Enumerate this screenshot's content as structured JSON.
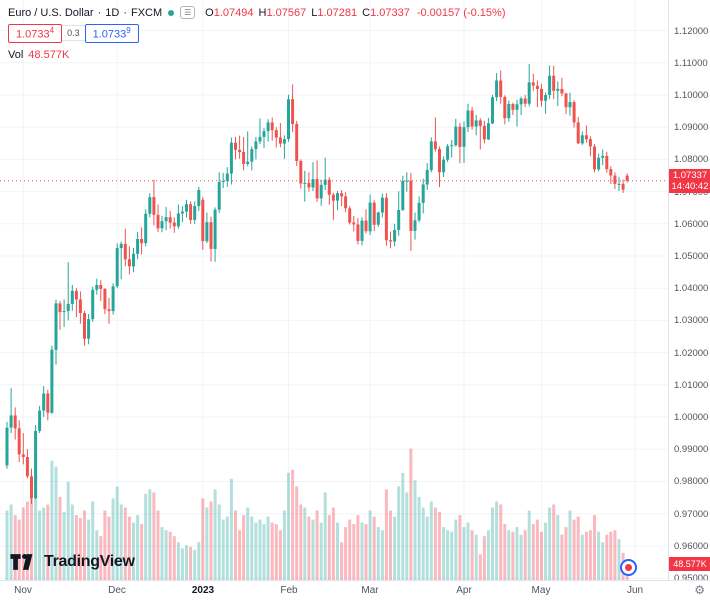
{
  "header": {
    "symbol": "Euro / U.S. Dollar",
    "sep1": "·",
    "interval": "1D",
    "sep2": "·",
    "exchange": "FXCM",
    "ohlc": {
      "o_label": "O",
      "o_value": "1.07494",
      "h_label": "H",
      "h_value": "1.07567",
      "l_label": "L",
      "l_value": "1.07281",
      "c_label": "C",
      "c_value": "1.07337",
      "change": "-0.00157 (-0.15%)"
    },
    "bid": {
      "price": "1.0733",
      "sup": "4"
    },
    "spread": "0.3",
    "ask": {
      "price": "1.0733",
      "sup": "9"
    },
    "volume_row": {
      "label": "Vol",
      "value": "48.577K"
    }
  },
  "price_axis": {
    "labels": [
      "1.12000",
      "1.11000",
      "1.10000",
      "1.09000",
      "1.08000",
      "1.07000",
      "1.06000",
      "1.05000",
      "1.04000",
      "1.03000",
      "1.02000",
      "1.01000",
      "1.00000",
      "0.99000",
      "0.98000",
      "0.97000",
      "0.96000",
      "0.95000"
    ],
    "current_price_label": "1.07337",
    "countdown": "14:40:42",
    "volume_label": "48.577K"
  },
  "time_axis": {
    "labels": [
      {
        "text": "Nov",
        "index": 4,
        "bold": false
      },
      {
        "text": "Dec",
        "index": 27,
        "bold": false
      },
      {
        "text": "2023",
        "index": 48,
        "bold": true
      },
      {
        "text": "Feb",
        "index": 69,
        "bold": false
      },
      {
        "text": "Mar",
        "index": 89,
        "bold": false
      },
      {
        "text": "Apr",
        "index": 112,
        "bold": false
      },
      {
        "text": "May",
        "index": 131,
        "bold": false
      },
      {
        "text": "Jun",
        "index": 154,
        "bold": false
      }
    ]
  },
  "branding": {
    "logo_text": "TradingView"
  },
  "colors": {
    "up": "#26a69a",
    "down_candle": "#ef5350",
    "down": "#f23645",
    "accent_blue": "#2962ff",
    "grid": "#f0f3fa",
    "axis_text": "#50535e",
    "volume_up": "rgba(38,166,154,0.35)",
    "volume_down": "rgba(242,54,69,0.35)"
  },
  "chart_data": {
    "type": "candlestick",
    "title": "Euro / U.S. Dollar",
    "symbol": "EURUSD",
    "interval": "1D",
    "exchange": "FXCM",
    "ylim": [
      0.9494,
      1.1295
    ],
    "price_step": 0.01,
    "volume_axis_max_k": 480,
    "current": {
      "open": 1.07494,
      "high": 1.07567,
      "low": 1.07281,
      "close": 1.07337,
      "change": -0.00157,
      "change_pct": -0.15,
      "volume_k": 48.577
    },
    "columns": [
      "open",
      "high",
      "low",
      "close",
      "volume_k"
    ],
    "candles": [
      [
        0.985,
        0.9985,
        0.984,
        0.9967,
        230
      ],
      [
        0.9967,
        1.009,
        0.995,
        1.0005,
        250
      ],
      [
        1.0005,
        1.003,
        0.993,
        0.9965,
        215
      ],
      [
        0.9965,
        0.999,
        0.986,
        0.9884,
        200
      ],
      [
        0.9884,
        0.995,
        0.9853,
        0.9876,
        240
      ],
      [
        0.9876,
        0.99,
        0.981,
        0.9816,
        260
      ],
      [
        0.9816,
        0.984,
        0.973,
        0.9748,
        270
      ],
      [
        0.9748,
        0.9975,
        0.9745,
        0.9957,
        295
      ],
      [
        0.9957,
        1.0035,
        0.995,
        1.002,
        230
      ],
      [
        1.002,
        1.0096,
        1.0,
        1.0073,
        240
      ],
      [
        1.0073,
        1.0085,
        0.999,
        1.0013,
        250
      ],
      [
        1.0013,
        1.0222,
        1.001,
        1.0209,
        395
      ],
      [
        1.0209,
        1.0364,
        1.0163,
        1.0353,
        375
      ],
      [
        1.0353,
        1.036,
        1.0271,
        1.0326,
        275
      ],
      [
        1.0326,
        1.0365,
        1.028,
        1.0329,
        225
      ],
      [
        1.0329,
        1.0481,
        1.03,
        1.0351,
        325
      ],
      [
        1.0351,
        1.041,
        1.033,
        1.0392,
        250
      ],
      [
        1.0392,
        1.04,
        1.031,
        1.0365,
        215
      ],
      [
        1.0365,
        1.039,
        1.029,
        1.0323,
        205
      ],
      [
        1.0323,
        1.033,
        1.0222,
        1.0243,
        230
      ],
      [
        1.0243,
        1.032,
        1.0226,
        1.0304,
        200
      ],
      [
        1.0304,
        1.0405,
        1.0295,
        1.0395,
        260
      ],
      [
        1.0395,
        1.043,
        1.038,
        1.041,
        165
      ],
      [
        1.041,
        1.0425,
        1.036,
        1.0398,
        145
      ],
      [
        1.0398,
        1.04,
        1.032,
        1.0335,
        230
      ],
      [
        1.0335,
        1.037,
        1.029,
        1.0329,
        210
      ],
      [
        1.0329,
        1.0415,
        1.0318,
        1.0406,
        270
      ],
      [
        1.0406,
        1.0539,
        1.04,
        1.0525,
        310
      ],
      [
        1.0525,
        1.0545,
        1.0428,
        1.0538,
        250
      ],
      [
        1.0538,
        1.0585,
        1.0468,
        1.049,
        240
      ],
      [
        1.049,
        1.053,
        1.0443,
        1.0468,
        210
      ],
      [
        1.0468,
        1.0525,
        1.045,
        1.0507,
        190
      ],
      [
        1.0507,
        1.0575,
        1.049,
        1.0553,
        215
      ],
      [
        1.0553,
        1.0589,
        1.0505,
        1.054,
        185
      ],
      [
        1.054,
        1.0645,
        1.053,
        1.0631,
        285
      ],
      [
        1.0631,
        1.0695,
        1.062,
        1.0683,
        300
      ],
      [
        1.0683,
        1.0737,
        1.0595,
        1.0628,
        290
      ],
      [
        1.0628,
        1.066,
        1.0575,
        1.0586,
        230
      ],
      [
        1.0586,
        1.0625,
        1.0574,
        1.0608,
        175
      ],
      [
        1.0608,
        1.0653,
        1.058,
        1.0621,
        165
      ],
      [
        1.0621,
        1.064,
        1.0585,
        1.0604,
        160
      ],
      [
        1.0604,
        1.062,
        1.0572,
        1.0592,
        145
      ],
      [
        1.0592,
        1.066,
        1.0585,
        1.0632,
        125
      ],
      [
        1.0632,
        1.0655,
        1.0605,
        1.0638,
        105
      ],
      [
        1.0638,
        1.0675,
        1.062,
        1.0661,
        115
      ],
      [
        1.0661,
        1.067,
        1.06,
        1.0612,
        110
      ],
      [
        1.0612,
        1.067,
        1.06,
        1.0655,
        100
      ],
      [
        1.0655,
        1.0715,
        1.064,
        1.0705,
        125
      ],
      [
        1.0675,
        1.0683,
        1.0519,
        1.0546,
        270
      ],
      [
        1.0546,
        1.0635,
        1.054,
        1.0605,
        240
      ],
      [
        1.0605,
        1.0622,
        1.0483,
        1.0522,
        260
      ],
      [
        1.0522,
        1.0651,
        1.0482,
        1.0644,
        300
      ],
      [
        1.0644,
        1.076,
        1.0634,
        1.073,
        250
      ],
      [
        1.073,
        1.0758,
        1.0711,
        1.0733,
        200
      ],
      [
        1.0733,
        1.0776,
        1.0715,
        1.0756,
        210
      ],
      [
        1.0756,
        1.0868,
        1.0722,
        1.0852,
        335
      ],
      [
        1.0852,
        1.087,
        1.08,
        1.083,
        230
      ],
      [
        1.083,
        1.0874,
        1.0802,
        1.0823,
        165
      ],
      [
        1.0823,
        1.087,
        1.0766,
        1.0786,
        215
      ],
      [
        1.0786,
        1.0887,
        1.0779,
        1.0793,
        240
      ],
      [
        1.0793,
        1.084,
        1.0766,
        1.0832,
        210
      ],
      [
        1.0832,
        1.087,
        1.08,
        1.0856,
        190
      ],
      [
        1.0856,
        1.0927,
        1.0848,
        1.087,
        200
      ],
      [
        1.087,
        1.0898,
        1.0835,
        1.0888,
        185
      ],
      [
        1.0888,
        1.0925,
        1.0855,
        1.0915,
        210
      ],
      [
        1.0915,
        1.093,
        1.0858,
        1.0891,
        190
      ],
      [
        1.0891,
        1.09,
        1.0837,
        1.0868,
        185
      ],
      [
        1.0868,
        1.0913,
        1.0838,
        1.0849,
        165
      ],
      [
        1.0849,
        1.0875,
        1.0802,
        1.0863,
        230
      ],
      [
        1.0863,
        1.1001,
        1.0855,
        1.0987,
        355
      ],
      [
        1.0987,
        1.1033,
        1.0885,
        1.091,
        365
      ],
      [
        1.091,
        1.092,
        1.078,
        1.0795,
        310
      ],
      [
        1.0795,
        1.08,
        1.0709,
        1.0725,
        250
      ],
      [
        1.0725,
        1.0765,
        1.0669,
        1.0727,
        240
      ],
      [
        1.0727,
        1.076,
        1.07,
        1.0713,
        210
      ],
      [
        1.0713,
        1.0791,
        1.0702,
        1.0739,
        200
      ],
      [
        1.0739,
        1.0797,
        1.0668,
        1.0679,
        230
      ],
      [
        1.0679,
        1.0737,
        1.0656,
        1.0721,
        190
      ],
      [
        1.0721,
        1.0805,
        1.0705,
        1.0737,
        290
      ],
      [
        1.0737,
        1.0745,
        1.0659,
        1.069,
        215
      ],
      [
        1.069,
        1.0696,
        1.0612,
        1.0672,
        240
      ],
      [
        1.0672,
        1.0702,
        1.0642,
        1.0695,
        190
      ],
      [
        1.0695,
        1.0705,
        1.0655,
        1.0685,
        125
      ],
      [
        1.0685,
        1.0698,
        1.0636,
        1.0648,
        175
      ],
      [
        1.0648,
        1.0655,
        1.0598,
        1.0604,
        200
      ],
      [
        1.0604,
        1.0624,
        1.0576,
        1.0598,
        185
      ],
      [
        1.0598,
        1.0618,
        1.0536,
        1.0547,
        215
      ],
      [
        1.0547,
        1.062,
        1.0533,
        1.061,
        190
      ],
      [
        1.061,
        1.0645,
        1.057,
        1.0577,
        185
      ],
      [
        1.0577,
        1.0691,
        1.0565,
        1.0666,
        230
      ],
      [
        1.0666,
        1.0673,
        1.0577,
        1.0597,
        210
      ],
      [
        1.0597,
        1.0638,
        1.059,
        1.0635,
        175
      ],
      [
        1.0635,
        1.0694,
        1.062,
        1.0681,
        165
      ],
      [
        1.0681,
        1.0695,
        1.0532,
        1.0549,
        300
      ],
      [
        1.0549,
        1.0576,
        1.0524,
        1.0545,
        230
      ],
      [
        1.0545,
        1.06,
        1.053,
        1.0581,
        210
      ],
      [
        1.0581,
        1.0701,
        1.0563,
        1.0643,
        310
      ],
      [
        1.0643,
        1.0749,
        1.064,
        1.0733,
        355
      ],
      [
        1.0733,
        1.076,
        1.07,
        1.0734,
        290
      ],
      [
        1.0734,
        1.0758,
        1.0516,
        1.0578,
        435
      ],
      [
        1.0578,
        1.0635,
        1.0551,
        1.0611,
        330
      ],
      [
        1.0611,
        1.0685,
        1.0605,
        1.0665,
        275
      ],
      [
        1.0665,
        1.074,
        1.0632,
        1.0722,
        240
      ],
      [
        1.0722,
        1.0789,
        1.0705,
        1.0767,
        210
      ],
      [
        1.0767,
        1.0868,
        1.076,
        1.0856,
        260
      ],
      [
        1.0856,
        1.093,
        1.0824,
        1.0832,
        240
      ],
      [
        1.0832,
        1.084,
        1.0714,
        1.076,
        225
      ],
      [
        1.076,
        1.081,
        1.0745,
        1.0799,
        175
      ],
      [
        1.0799,
        1.0848,
        1.0792,
        1.0841,
        165
      ],
      [
        1.0841,
        1.086,
        1.0806,
        1.0844,
        160
      ],
      [
        1.0844,
        1.0926,
        1.084,
        1.0902,
        200
      ],
      [
        1.0902,
        1.0913,
        1.0788,
        1.0839,
        215
      ],
      [
        1.0839,
        1.0918,
        1.0789,
        1.09,
        175
      ],
      [
        1.09,
        1.0973,
        1.0885,
        1.0952,
        190
      ],
      [
        1.0952,
        1.0963,
        1.0892,
        1.0902,
        165
      ],
      [
        1.0902,
        1.0938,
        1.0875,
        1.0921,
        150
      ],
      [
        1.0921,
        1.0928,
        1.0831,
        1.0904,
        85
      ],
      [
        1.0904,
        1.092,
        1.085,
        1.0862,
        145
      ],
      [
        1.0862,
        1.0929,
        1.086,
        1.0912,
        165
      ],
      [
        1.0912,
        1.1,
        1.091,
        1.0993,
        240
      ],
      [
        1.0993,
        1.1068,
        1.0981,
        1.1045,
        260
      ],
      [
        1.1045,
        1.1076,
        1.0973,
        1.0994,
        250
      ],
      [
        1.0994,
        1.0999,
        1.0909,
        1.0928,
        185
      ],
      [
        1.0928,
        1.0983,
        1.0917,
        1.0972,
        165
      ],
      [
        1.0972,
        1.0976,
        1.0938,
        1.0954,
        160
      ],
      [
        1.0954,
        1.0985,
        1.0902,
        1.0971,
        175
      ],
      [
        1.0971,
        1.0995,
        1.0938,
        1.0989,
        150
      ],
      [
        1.0989,
        1.1,
        1.0963,
        1.0973,
        165
      ],
      [
        1.0973,
        1.1096,
        1.0965,
        1.1039,
        230
      ],
      [
        1.1039,
        1.1066,
        1.1013,
        1.1029,
        185
      ],
      [
        1.1029,
        1.1045,
        1.0962,
        1.1019,
        200
      ],
      [
        1.1019,
        1.1035,
        1.0964,
        1.0982,
        160
      ],
      [
        1.0982,
        1.1008,
        1.0942,
        1.1,
        190
      ],
      [
        1.1,
        1.1092,
        1.0987,
        1.106,
        240
      ],
      [
        1.106,
        1.1091,
        1.0987,
        1.1013,
        250
      ],
      [
        1.1013,
        1.1042,
        1.0966,
        1.1019,
        215
      ],
      [
        1.1019,
        1.1053,
        1.0996,
        1.1005,
        150
      ],
      [
        1.1005,
        1.1006,
        1.0941,
        1.0962,
        175
      ],
      [
        1.0962,
        1.1007,
        1.0936,
        1.0978,
        230
      ],
      [
        1.0978,
        1.0984,
        1.0899,
        1.0915,
        200
      ],
      [
        1.0915,
        1.0932,
        1.0848,
        1.085,
        210
      ],
      [
        1.085,
        1.0887,
        1.0845,
        1.0875,
        150
      ],
      [
        1.0875,
        1.0906,
        1.0852,
        1.0863,
        160
      ],
      [
        1.0863,
        1.0872,
        1.081,
        1.084,
        165
      ],
      [
        1.084,
        1.0848,
        1.076,
        1.0769,
        215
      ],
      [
        1.0769,
        1.0818,
        1.0763,
        1.0805,
        160
      ],
      [
        1.0805,
        1.0831,
        1.0782,
        1.0811,
        125
      ],
      [
        1.0811,
        1.0824,
        1.0759,
        1.077,
        150
      ],
      [
        1.077,
        1.0779,
        1.0724,
        1.075,
        160
      ],
      [
        1.075,
        1.076,
        1.0708,
        1.0724,
        165
      ],
      [
        1.0724,
        1.0746,
        1.0702,
        1.0724,
        135
      ],
      [
        1.0724,
        1.0738,
        1.0696,
        1.0706,
        90
      ],
      [
        1.07494,
        1.07567,
        1.07281,
        1.07337,
        48.577
      ]
    ]
  }
}
